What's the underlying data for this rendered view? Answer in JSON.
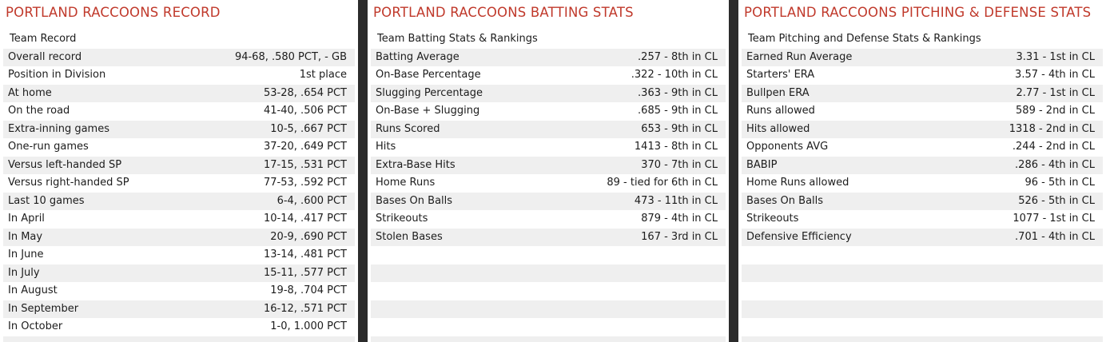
{
  "record": {
    "title": "PORTLAND RACCOONS RECORD",
    "header": "Team Record",
    "rows": [
      {
        "label": "Overall record",
        "value": "94-68, .580 PCT, - GB"
      },
      {
        "label": "Position in Division",
        "value": "1st place"
      },
      {
        "label": "At home",
        "value": "53-28, .654 PCT"
      },
      {
        "label": "On the road",
        "value": "41-40, .506 PCT"
      },
      {
        "label": "Extra-inning games",
        "value": "10-5, .667 PCT"
      },
      {
        "label": "One-run games",
        "value": "37-20, .649 PCT"
      },
      {
        "label": "Versus left-handed SP",
        "value": "17-15, .531 PCT"
      },
      {
        "label": "Versus right-handed SP",
        "value": "77-53, .592 PCT"
      },
      {
        "label": "Last 10 games",
        "value": "6-4, .600 PCT"
      },
      {
        "label": "In April",
        "value": "10-14, .417 PCT"
      },
      {
        "label": "In May",
        "value": "20-9, .690 PCT"
      },
      {
        "label": "In June",
        "value": "13-14, .481 PCT"
      },
      {
        "label": "In July",
        "value": "15-11, .577 PCT"
      },
      {
        "label": "In August",
        "value": "19-8, .704 PCT"
      },
      {
        "label": "In September",
        "value": "16-12, .571 PCT"
      },
      {
        "label": "In October",
        "value": "1-0, 1.000 PCT"
      },
      {
        "label": "",
        "value": ""
      }
    ]
  },
  "batting": {
    "title": "PORTLAND RACCOONS BATTING STATS",
    "header": "Team Batting Stats & Rankings",
    "rows": [
      {
        "label": "Batting Average",
        "value": ".257 - 8th  in CL"
      },
      {
        "label": "On-Base Percentage",
        "value": ".322 - 10th  in CL"
      },
      {
        "label": "Slugging Percentage",
        "value": ".363 - 9th  in CL"
      },
      {
        "label": "On-Base + Slugging",
        "value": ".685 - 9th  in CL"
      },
      {
        "label": "Runs Scored",
        "value": "653 - 9th  in CL"
      },
      {
        "label": "Hits",
        "value": "1413 - 8th  in CL"
      },
      {
        "label": "Extra-Base Hits",
        "value": "370 - 7th  in CL"
      },
      {
        "label": "Home Runs",
        "value": "89 -  tied for 6th  in CL"
      },
      {
        "label": "Bases On Balls",
        "value": "473 - 11th  in CL"
      },
      {
        "label": "Strikeouts",
        "value": "879 - 4th  in CL"
      },
      {
        "label": "Stolen Bases",
        "value": "167 - 3rd  in CL"
      },
      {
        "label": "",
        "value": ""
      },
      {
        "label": "",
        "value": ""
      },
      {
        "label": "",
        "value": ""
      },
      {
        "label": "",
        "value": ""
      },
      {
        "label": "",
        "value": ""
      },
      {
        "label": "",
        "value": ""
      }
    ]
  },
  "pitching": {
    "title": "PORTLAND RACCOONS PITCHING & DEFENSE STATS",
    "header": "Team Pitching and Defense Stats & Rankings",
    "rows": [
      {
        "label": "Earned Run Average",
        "value": "3.31 - 1st  in CL"
      },
      {
        "label": "Starters' ERA",
        "value": "3.57 - 4th  in CL"
      },
      {
        "label": "Bullpen ERA",
        "value": "2.77 - 1st  in CL"
      },
      {
        "label": "Runs allowed",
        "value": "589 - 2nd  in CL"
      },
      {
        "label": "Hits allowed",
        "value": "1318 - 2nd  in CL"
      },
      {
        "label": "Opponents AVG",
        "value": ".244 - 2nd  in CL"
      },
      {
        "label": "BABIP",
        "value": ".286 - 4th  in CL"
      },
      {
        "label": "Home Runs allowed",
        "value": "96 - 5th  in CL"
      },
      {
        "label": "Bases On Balls",
        "value": "526 - 5th  in CL"
      },
      {
        "label": "Strikeouts",
        "value": "1077 - 1st  in CL"
      },
      {
        "label": "Defensive Efficiency",
        "value": ".701 - 4th  in CL"
      },
      {
        "label": "",
        "value": ""
      },
      {
        "label": "",
        "value": ""
      },
      {
        "label": "",
        "value": ""
      },
      {
        "label": "",
        "value": ""
      },
      {
        "label": "",
        "value": ""
      },
      {
        "label": "",
        "value": ""
      }
    ]
  }
}
